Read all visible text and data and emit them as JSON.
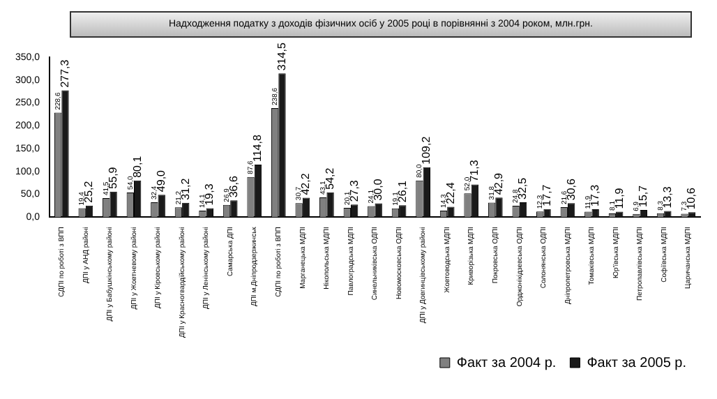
{
  "chart_data": {
    "type": "bar",
    "title": "Надходження податку з доходів фізичних осіб у 2005 році в порівнянні з 2004 роком, млн.грн.",
    "categories": [
      "СДПІ по роботі з ВПП",
      "ДПІ у АНД районі",
      "ДПІ у Бабушкінському районі",
      "ДПІ у Жовтневому районі",
      "ДПІ у Кіровському районі",
      "ДПІ у Красногвардійському районі",
      "ДПІ у Ленінському районі",
      "Самарська ДПІ",
      "ДПІ м.Дніпродзержинськ",
      "СДПІ по роботі з ВПП",
      "Марганецька МДПІ",
      "Нікопольська МДПІ",
      "Павлоградська МДПІ",
      "Синельниківська ОДПІ",
      "Новомосковська ОДПІ",
      "ДПІ у Довгинцівському районі",
      "Жовтоводська МДПІ",
      "Криворізька МДПІ",
      "Покровська ОДПІ",
      "Орджонікідзевська ОДПІ",
      "Солонянська ОДПІ",
      "Дніпропетровська МДПІ",
      "Томаківська МДПІ",
      "Юр'ївська МДПІ",
      "Петропавлівська МДПІ",
      "Софіївська МДПІ",
      "Царичанська МДПІ"
    ],
    "series": [
      {
        "name": "Факт за 2004 р.",
        "color": "#808080",
        "values": [
          228.6,
          19.4,
          41.5,
          54.0,
          32.4,
          21.2,
          14.1,
          26.9,
          87.6,
          238.6,
          30.7,
          43.1,
          20.1,
          24.1,
          19.1,
          80.0,
          14.3,
          52.0,
          31.8,
          24.8,
          12.3,
          21.6,
          11.9,
          8.1,
          6.9,
          8.3,
          7.3
        ],
        "value_labels": [
          "228,6",
          "19,4",
          "41,5",
          "54,0",
          "32,4",
          "21,2",
          "14,1",
          "26,9",
          "87,6",
          "238,6",
          "30,7",
          "43,1",
          "20,1",
          "24,1",
          "19,1",
          "80,0",
          "14,3",
          "52,0",
          "31,8",
          "24,8",
          "12,3",
          "21,6",
          "11,9",
          "8,1",
          "6,9",
          "8,3",
          "7,3"
        ]
      },
      {
        "name": "Факт за 2005 р.",
        "color": "#1a1a1a",
        "values": [
          277.3,
          25.2,
          55.9,
          80.1,
          49.0,
          31.2,
          19.3,
          36.6,
          114.8,
          314.5,
          42.2,
          54.2,
          27.3,
          30.0,
          26.1,
          109.2,
          22.4,
          71.3,
          42.9,
          32.5,
          17.7,
          30.6,
          17.3,
          11.9,
          15.7,
          13.3,
          10.6
        ],
        "value_labels": [
          "277,3",
          "25,2",
          "55,9",
          "80,1",
          "49,0",
          "31,2",
          "19,3",
          "36,6",
          "114,8",
          "314,5",
          "42,2",
          "54,2",
          "27,3",
          "30,0",
          "26,1",
          "109,2",
          "22,4",
          "71,3",
          "42,9",
          "32,5",
          "17,7",
          "30,6",
          "17,3",
          "11,9",
          "15,7",
          "13,3",
          "10,6"
        ]
      }
    ],
    "ylim": [
      0,
      350
    ],
    "yticks": [
      {
        "value": 0,
        "label": "0,0"
      },
      {
        "value": 50,
        "label": "50,0"
      },
      {
        "value": 100,
        "label": "100,0"
      },
      {
        "value": 150,
        "label": "150,0"
      },
      {
        "value": 200,
        "label": "200,0"
      },
      {
        "value": 250,
        "label": "250,0"
      },
      {
        "value": 300,
        "label": "300,0"
      },
      {
        "value": 350,
        "label": "350,0"
      }
    ],
    "grid": false,
    "legend": "bottom right"
  }
}
